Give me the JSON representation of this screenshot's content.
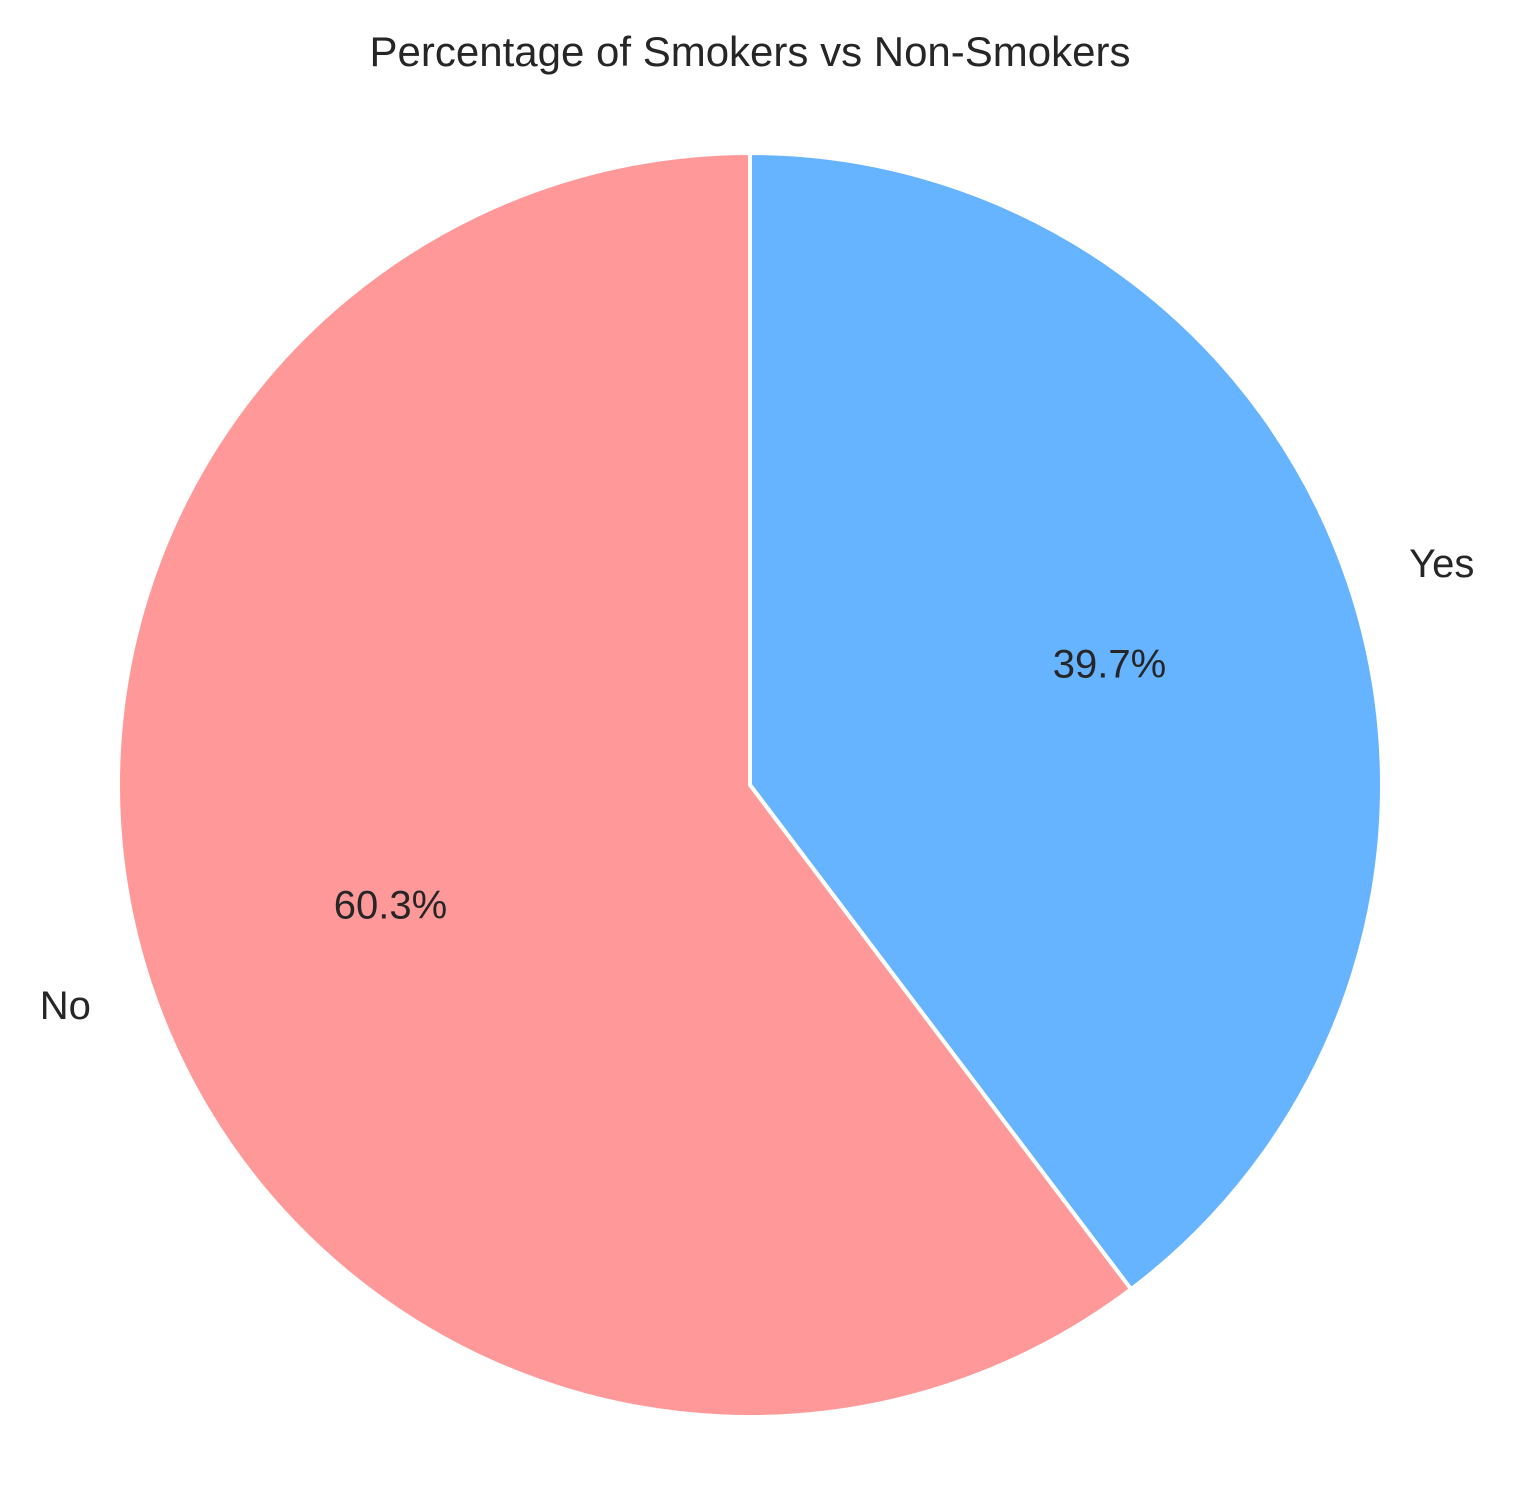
{
  "chart_data": {
    "type": "pie",
    "title": "Percentage of Smokers vs Non-Smokers",
    "start_angle_deg": 90,
    "direction": "clockwise",
    "slices": [
      {
        "label": "Yes",
        "value": 39.7,
        "pct_label": "39.7%",
        "color": "#66b3ff"
      },
      {
        "label": "No",
        "value": 60.3,
        "pct_label": "60.3%",
        "color": "#ff9999"
      }
    ]
  }
}
